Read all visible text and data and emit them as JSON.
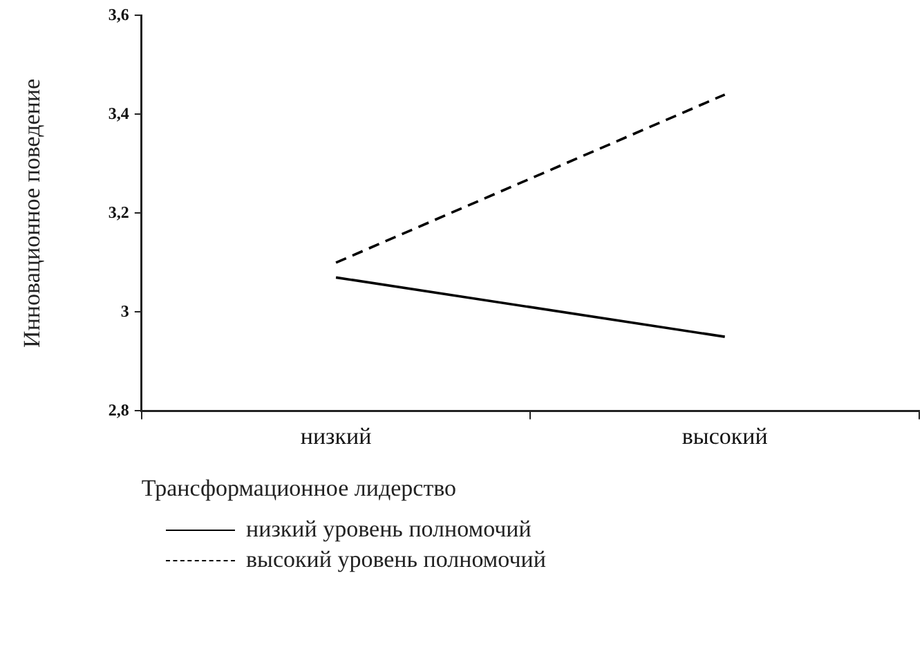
{
  "chart_data": {
    "type": "line",
    "xlabel": "Трансформационное лидерство",
    "ylabel": "Инновационное поведение",
    "categories": [
      "низкий",
      "высокий"
    ],
    "series": [
      {
        "name": "низкий уровень полномочий",
        "color": "#000000",
        "values": [
          3.07,
          2.95
        ],
        "line_style": "solid"
      },
      {
        "name": "высокий уровень полномочий",
        "color": "#000000",
        "values": [
          3.1,
          3.44
        ],
        "line_style": "dashed"
      }
    ],
    "ylim": [
      2.8,
      3.6
    ],
    "yticks": [
      {
        "value": 2.8,
        "label": "2,8"
      },
      {
        "value": 3,
        "label": "3"
      },
      {
        "value": 3.2,
        "label": "3,2"
      },
      {
        "value": 3.4,
        "label": "3,4"
      },
      {
        "value": 3.6,
        "label": "3,6"
      }
    ],
    "grid": false,
    "legend": "bottom",
    "marker": "none"
  }
}
